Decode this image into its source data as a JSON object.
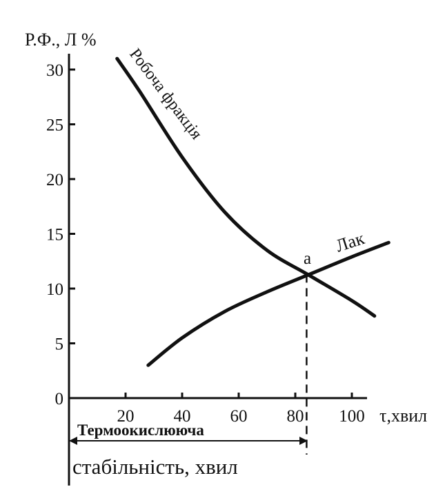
{
  "chart_data": {
    "type": "line",
    "ylabel": "Р.Ф., Л %",
    "xlabel": "τ,хвил",
    "x_ticks": [
      20,
      40,
      60,
      80,
      100
    ],
    "y_ticks": [
      0,
      5,
      10,
      15,
      20,
      25,
      30
    ],
    "xlim": [
      0,
      122
    ],
    "ylim": [
      0,
      31
    ],
    "grid": false,
    "series": [
      {
        "name": "Робоча фракція",
        "x": [
          17,
          25,
          40,
          55,
          70,
          85,
          100,
          108
        ],
        "y": [
          31,
          28,
          22,
          17,
          13.5,
          11.2,
          8.9,
          7.5
        ]
      },
      {
        "name": "Лак",
        "x": [
          28,
          40,
          55,
          70,
          85,
          100,
          113
        ],
        "y": [
          3,
          5.5,
          7.9,
          9.7,
          11.3,
          12.9,
          14.2
        ]
      }
    ],
    "annotations": {
      "intersection_label": "a",
      "intersection": {
        "x": 84,
        "y": 11.3
      },
      "span_label_top": "Термоокислююча",
      "span_label_bottom": "стабільність, хвил"
    }
  }
}
